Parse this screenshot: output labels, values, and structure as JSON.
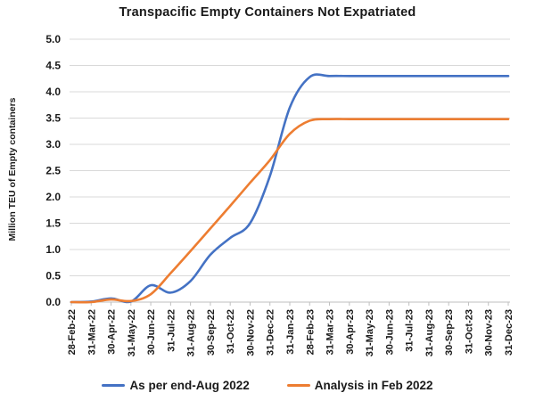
{
  "title": "Transpacific Empty Containers Not Expatriated",
  "y_axis_title": "Million TEU of Empty containers",
  "colors": {
    "series_blue": "#4472C4",
    "series_orange": "#ED7D31",
    "gridline": "#D9D9D9",
    "axis_line": "#BFBFBF",
    "text": "#1a1a1a"
  },
  "chart_data": {
    "type": "line",
    "title": "Transpacific Empty Containers Not Expatriated",
    "xlabel": "",
    "ylabel": "Million TEU of Empty containers",
    "ylim": [
      0,
      5
    ],
    "ytick_step": 0.5,
    "grid": true,
    "legend_position": "bottom",
    "categories": [
      "28-Feb-22",
      "31-Mar-22",
      "30-Apr-22",
      "31-May-22",
      "30-Jun-22",
      "31-Jul-22",
      "31-Aug-22",
      "30-Sep-22",
      "31-Oct-22",
      "30-Nov-22",
      "31-Dec-22",
      "31-Jan-23",
      "28-Feb-23",
      "31-Mar-23",
      "30-Apr-23",
      "31-May-23",
      "30-Jun-23",
      "31-Jul-23",
      "31-Aug-23",
      "30-Sep-23",
      "31-Oct-23",
      "30-Nov-23",
      "31-Dec-23"
    ],
    "series": [
      {
        "name": "As per end-Aug 2022",
        "color": "#4472C4",
        "values": [
          0.0,
          0.01,
          0.07,
          0.01,
          0.32,
          0.18,
          0.4,
          0.9,
          1.22,
          1.5,
          2.4,
          3.7,
          4.28,
          4.3,
          4.3,
          4.3,
          4.3,
          4.3,
          4.3,
          4.3,
          4.3,
          4.3,
          4.3
        ]
      },
      {
        "name": "Analysis in Feb 2022",
        "color": "#ED7D31",
        "values": [
          0.0,
          0.0,
          0.05,
          0.02,
          0.15,
          0.55,
          0.97,
          1.4,
          1.83,
          2.27,
          2.7,
          3.2,
          3.45,
          3.48,
          3.48,
          3.48,
          3.48,
          3.48,
          3.48,
          3.48,
          3.48,
          3.48,
          3.48
        ]
      }
    ]
  }
}
